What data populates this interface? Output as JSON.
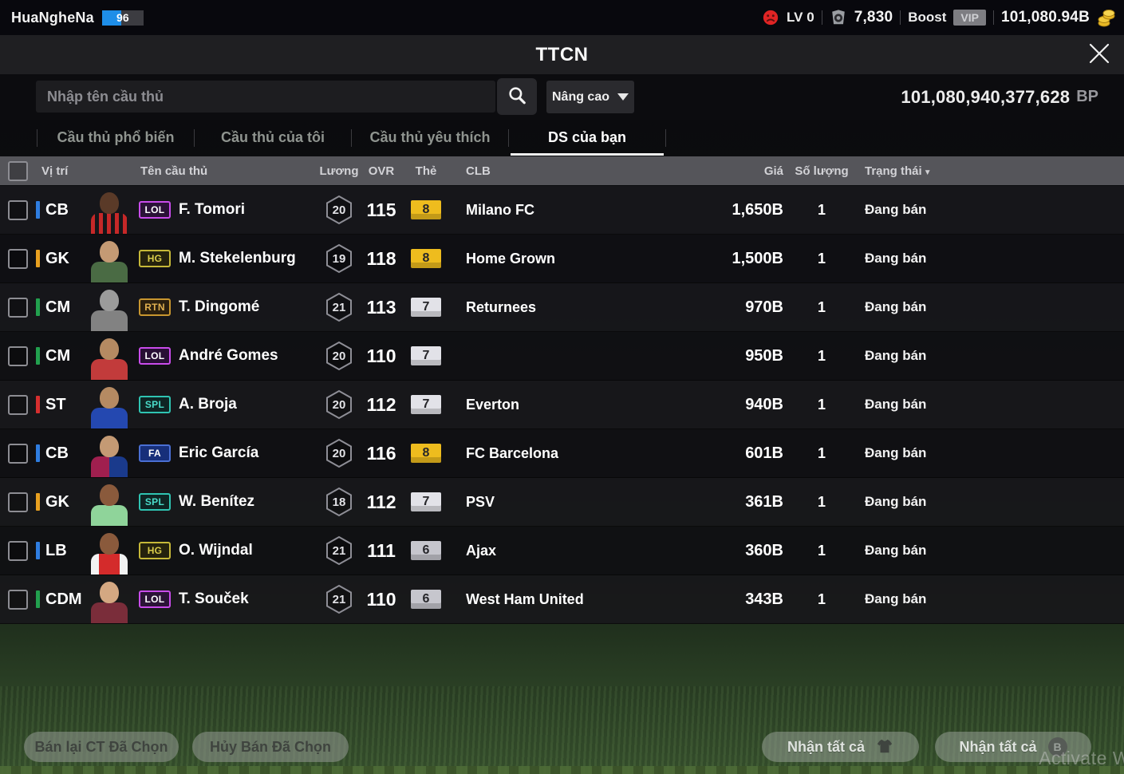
{
  "top_bar": {
    "username": "HuaNgheNa",
    "level": "96",
    "lv_label": "LV 0",
    "tickets": "7,830",
    "boost_label": "Boost",
    "vip_label": "VIP",
    "coins": "101,080.94B"
  },
  "title_bar": {
    "title": "TTCN"
  },
  "search": {
    "placeholder": "Nhập tên cầu thủ",
    "advanced_label": "Nâng cao",
    "bp_amount": "101,080,940,377,628",
    "bp_unit": "BP"
  },
  "tabs": [
    {
      "label": "Cầu thủ phổ biến",
      "active": false
    },
    {
      "label": "Cầu thủ của tôi",
      "active": false
    },
    {
      "label": "Cầu thủ yêu thích",
      "active": false
    },
    {
      "label": "DS của bạn",
      "active": true
    }
  ],
  "table_headers": {
    "position": "Vị trí",
    "name": "Tên cầu thủ",
    "salary": "Lương",
    "ovr": "OVR",
    "card": "Thẻ",
    "club": "CLB",
    "price": "Giá",
    "quantity": "Số lượng",
    "status": "Trạng thái",
    "status_sort": "▼"
  },
  "rows": [
    {
      "position": "CB",
      "pos_color": "#2f7de0",
      "badge": "LOL",
      "badge_color": "#c94ceb",
      "badge_text": "#ffffff",
      "badge_bg": "rgba(60,15,80,0.55)",
      "name": "F. Tomori",
      "salary": "20",
      "ovr": "115",
      "card": "8",
      "card_bg": "#eebc1e",
      "club": "Milano FC",
      "price": "1,650B",
      "quantity": "1",
      "status": "Đang bán",
      "avatar": {
        "skin": "#5a3a28",
        "shirt": "repeating-linear-gradient(90deg,#c62828 0 5px,#16161a 5px 10px)"
      }
    },
    {
      "position": "GK",
      "pos_color": "#e8a020",
      "badge": "HG",
      "badge_color": "#c6b838",
      "badge_text": "#d9cc4a",
      "badge_bg": "rgba(55,50,10,0.55)",
      "name": "M. Stekelenburg",
      "salary": "19",
      "ovr": "118",
      "card": "8",
      "card_bg": "#eebc1e",
      "club": "Home Grown",
      "price": "1,500B",
      "quantity": "1",
      "status": "Đang bán",
      "avatar": {
        "skin": "#c49a74",
        "shirt": "#4a6b44"
      }
    },
    {
      "position": "CM",
      "pos_color": "#22a04e",
      "badge": "RTN",
      "badge_color": "#c8962f",
      "badge_text": "#e0b050",
      "badge_bg": "rgba(60,40,8,0.55)",
      "name": "T. Dingomé",
      "salary": "21",
      "ovr": "113",
      "card": "7",
      "card_bg": "#e2e2e8",
      "club": "Returnees",
      "price": "970B",
      "quantity": "1",
      "status": "Đang bán",
      "avatar": {
        "skin": "#9b9b9b",
        "shirt": "#828282"
      }
    },
    {
      "position": "CM",
      "pos_color": "#22a04e",
      "badge": "LOL",
      "badge_color": "#c94ceb",
      "badge_text": "#ffffff",
      "badge_bg": "rgba(60,15,80,0.55)",
      "name": "André Gomes",
      "salary": "20",
      "ovr": "110",
      "card": "7",
      "card_bg": "#e2e2e8",
      "club": "",
      "price": "950B",
      "quantity": "1",
      "status": "Đang bán",
      "avatar": {
        "skin": "#b58a62",
        "shirt": "#c23b3b"
      }
    },
    {
      "position": "ST",
      "pos_color": "#d62f2f",
      "badge": "SPL",
      "badge_color": "#2fc4b2",
      "badge_text": "#4adcca",
      "badge_bg": "rgba(8,50,46,0.55)",
      "name": "A. Broja",
      "salary": "20",
      "ovr": "112",
      "card": "7",
      "card_bg": "#e2e2e8",
      "club": "Everton",
      "price": "940B",
      "quantity": "1",
      "status": "Đang bán",
      "avatar": {
        "skin": "#b58a62",
        "shirt": "#2448b0"
      }
    },
    {
      "position": "CB",
      "pos_color": "#2f7de0",
      "badge": "FA",
      "badge_color": "#4a6fd4",
      "badge_text": "#ffffff",
      "badge_bg": "#172f7a",
      "name": "Eric García",
      "salary": "20",
      "ovr": "116",
      "card": "8",
      "card_bg": "#eebc1e",
      "club": "FC Barcelona",
      "price": "601B",
      "quantity": "1",
      "status": "Đang bán",
      "avatar": {
        "skin": "#c49a74",
        "shirt": "linear-gradient(90deg,#a01f4f 0 50%,#1a3a8c 50%)"
      }
    },
    {
      "position": "GK",
      "pos_color": "#e8a020",
      "badge": "SPL",
      "badge_color": "#2fc4b2",
      "badge_text": "#4adcca",
      "badge_bg": "rgba(8,50,46,0.55)",
      "name": "W. Benítez",
      "salary": "18",
      "ovr": "112",
      "card": "7",
      "card_bg": "#e2e2e8",
      "club": "PSV",
      "price": "361B",
      "quantity": "1",
      "status": "Đang bán",
      "avatar": {
        "skin": "#8a5a3c",
        "shirt": "#8fd49a"
      }
    },
    {
      "position": "LB",
      "pos_color": "#2f7de0",
      "badge": "HG",
      "badge_color": "#c6b838",
      "badge_text": "#d9cc4a",
      "badge_bg": "rgba(55,50,10,0.55)",
      "name": "O. Wijndal",
      "salary": "21",
      "ovr": "111",
      "card": "6",
      "card_bg": "#c6c6cd",
      "club": "Ajax",
      "price": "360B",
      "quantity": "1",
      "status": "Đang bán",
      "avatar": {
        "skin": "#8a5a3c",
        "shirt": "linear-gradient(90deg,#f2f2f2 0 22%,#d42b2b 22% 78%,#f2f2f2 78%)"
      }
    },
    {
      "position": "CDM",
      "pos_color": "#22a04e",
      "badge": "LOL",
      "badge_color": "#c94ceb",
      "badge_text": "#ffffff",
      "badge_bg": "rgba(60,15,80,0.55)",
      "name": "T. Souček",
      "salary": "21",
      "ovr": "110",
      "card": "6",
      "card_bg": "#c6c6cd",
      "club": "West Ham United",
      "price": "343B",
      "quantity": "1",
      "status": "Đang bán",
      "avatar": {
        "skin": "#d4a882",
        "shirt": "#7a2d3a"
      }
    }
  ],
  "footer": {
    "resell_label": "Bán lại CT Đã Chọn",
    "cancel_sale_label": "Hủy Bán Đã Chọn",
    "claim_all_players_label": "Nhận tất cả",
    "claim_all_bp_label": "Nhận tất cả",
    "bp_coin_letter": "B"
  },
  "watermark": "Activate W"
}
